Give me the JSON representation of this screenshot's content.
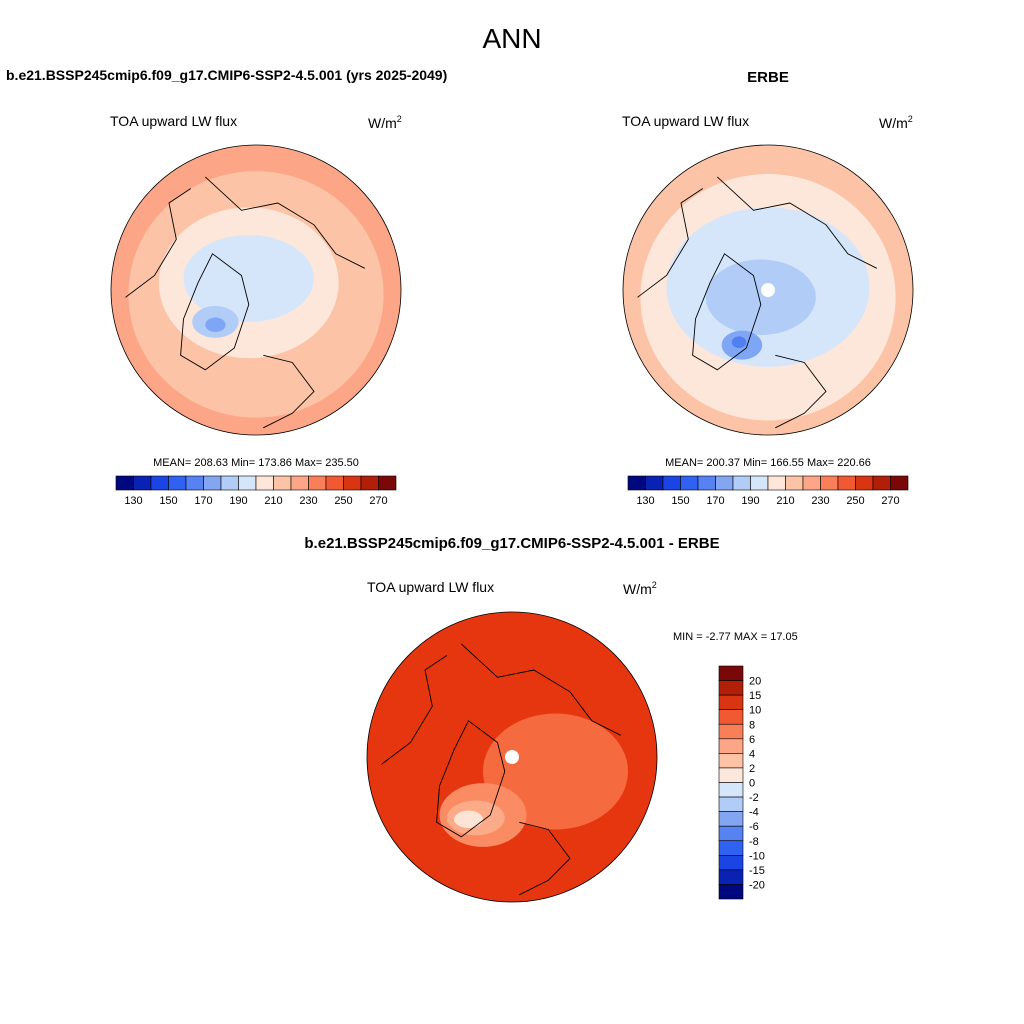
{
  "figure": {
    "title": "ANN",
    "variable": "TOA upward LW flux",
    "units_base": "W/m",
    "units_exp": "2"
  },
  "chart_data": [
    {
      "id": "model",
      "type": "heatmap",
      "projection": "north-polar-stereographic",
      "panel_title": "b.e21.BSSP245cmip6.f09_g17.CMIP6-SSP2-4.5.001 (yrs 2025-2049)",
      "stats_text": "MEAN= 208.63  Min= 173.86  Max= 235.50",
      "stats": {
        "mean": 208.63,
        "min": 173.86,
        "max": 235.5
      },
      "contour_levels": [
        130,
        140,
        150,
        160,
        170,
        180,
        190,
        200,
        210,
        220,
        230,
        240,
        250,
        260,
        270
      ],
      "colorbar_labels": [
        "130",
        "150",
        "170",
        "190",
        "210",
        "230",
        "250",
        "270"
      ],
      "colorbar_orientation": "horizontal",
      "contours": [
        {
          "level": 220,
          "color": "#fcc3a6",
          "rx": 0.88,
          "ry": 0.85,
          "dx": 0.0,
          "dy": 0.03
        },
        {
          "level": 210,
          "color": "#fde7da",
          "rx": 0.62,
          "ry": 0.52,
          "dx": -0.05,
          "dy": -0.05
        },
        {
          "level": 200,
          "color": "#d6e6fa",
          "rx": 0.45,
          "ry": 0.3,
          "dx": -0.05,
          "dy": -0.08
        },
        {
          "level": 190,
          "color": "#b1ccf7",
          "rx": 0.16,
          "ry": 0.11,
          "dx": -0.28,
          "dy": 0.22
        },
        {
          "level": 180,
          "color": "#7fa6f5",
          "rx": 0.07,
          "ry": 0.05,
          "dx": -0.28,
          "dy": 0.24
        }
      ],
      "background_level": 230,
      "background_color": "#fca587",
      "pole_missing": false
    },
    {
      "id": "obs",
      "type": "heatmap",
      "projection": "north-polar-stereographic",
      "panel_title": "ERBE",
      "stats_text": "MEAN= 200.37  Min= 166.55  Max= 220.66",
      "stats": {
        "mean": 200.37,
        "min": 166.55,
        "max": 220.66
      },
      "contour_levels": [
        130,
        140,
        150,
        160,
        170,
        180,
        190,
        200,
        210,
        220,
        230,
        240,
        250,
        260,
        270
      ],
      "colorbar_labels": [
        "130",
        "150",
        "170",
        "190",
        "210",
        "230",
        "250",
        "270"
      ],
      "colorbar_orientation": "horizontal",
      "contours": [
        {
          "level": 210,
          "color": "#fde7da",
          "rx": 0.88,
          "ry": 0.85,
          "dx": 0.0,
          "dy": 0.05
        },
        {
          "level": 200,
          "color": "#d6e6fa",
          "rx": 0.7,
          "ry": 0.55,
          "dx": 0.0,
          "dy": -0.02
        },
        {
          "level": 190,
          "color": "#b1ccf7",
          "rx": 0.38,
          "ry": 0.26,
          "dx": -0.05,
          "dy": 0.05
        },
        {
          "level": 180,
          "color": "#7fa6f5",
          "rx": 0.14,
          "ry": 0.1,
          "dx": -0.18,
          "dy": 0.38
        },
        {
          "level": 170,
          "color": "#4f7ff2",
          "rx": 0.05,
          "ry": 0.04,
          "dx": -0.2,
          "dy": 0.36
        }
      ],
      "background_level": 220,
      "background_color": "#fcc3a6",
      "pole_missing": true
    },
    {
      "id": "diff",
      "type": "heatmap",
      "projection": "north-polar-stereographic",
      "panel_title": "b.e21.BSSP245cmip6.f09_g17.CMIP6-SSP2-4.5.001 - ERBE",
      "minmax_text": "MIN =  -2.77 MAX =  17.05",
      "stats": {
        "min": -2.77,
        "max": 17.05
      },
      "contour_levels": [
        -20,
        -15,
        -10,
        -8,
        -6,
        -4,
        -2,
        0,
        2,
        4,
        6,
        8,
        10,
        15,
        20
      ],
      "colorbar_labels": [
        "20",
        "15",
        "10",
        "8",
        "6",
        "4",
        "2",
        "0",
        "-2",
        "-4",
        "-6",
        "-8",
        "-10",
        "-15",
        "-20"
      ],
      "colorbar_orientation": "vertical",
      "contours": [
        {
          "level": 8,
          "color": "#f66a3f",
          "rx": 0.5,
          "ry": 0.4,
          "dx": 0.3,
          "dy": 0.1
        },
        {
          "level": 6,
          "color": "#fa8b63",
          "rx": 0.3,
          "ry": 0.22,
          "dx": -0.2,
          "dy": 0.4
        },
        {
          "level": 4,
          "color": "#fcab89",
          "rx": 0.2,
          "ry": 0.12,
          "dx": -0.25,
          "dy": 0.42
        },
        {
          "level": 2,
          "color": "#fee4d7",
          "rx": 0.1,
          "ry": 0.06,
          "dx": -0.3,
          "dy": 0.43
        }
      ],
      "background_level": 10,
      "background_color": "#e5360f",
      "pole_missing": true
    }
  ],
  "colors": {
    "abs_scale": [
      "#000880",
      "#0a22b4",
      "#1a44e4",
      "#2f62f0",
      "#5782f2",
      "#83a6f3",
      "#b1ccf7",
      "#d6e6fa",
      "#fde7da",
      "#fcc3a6",
      "#fca587",
      "#f87f58",
      "#f05932",
      "#d93512",
      "#b21f08",
      "#7a0808"
    ],
    "diff_scale": [
      "#7a0808",
      "#b21f08",
      "#d93512",
      "#f05932",
      "#f87f58",
      "#fca587",
      "#fcc3a6",
      "#fde7da",
      "#d6e6fa",
      "#b1ccf7",
      "#83a6f3",
      "#5782f2",
      "#2f62f0",
      "#1a44e4",
      "#0a22b4",
      "#000880"
    ]
  }
}
